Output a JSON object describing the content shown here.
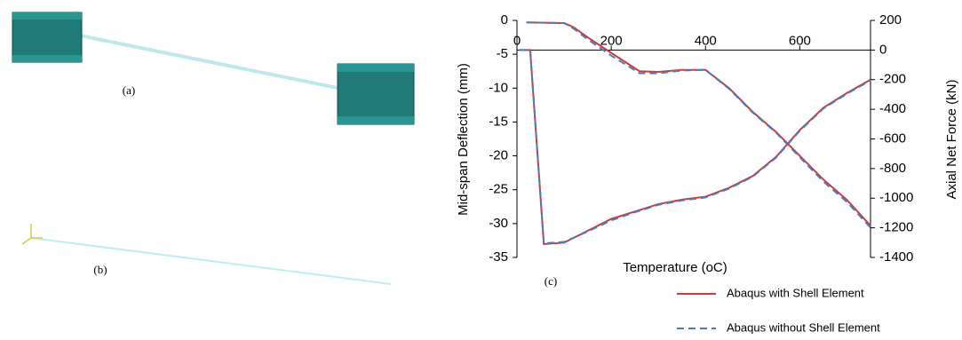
{
  "figure_labels": {
    "a": "(a)",
    "b": "(b)",
    "c": "(c)"
  },
  "chart_data": {
    "type": "line",
    "x_label": "Temperature (oC)",
    "y_label": "Mid-span Deflection (mm)",
    "y2_label": "Axial Net Force (kN)",
    "xlim": [
      0,
      750
    ],
    "xticks": [
      0,
      200,
      400,
      600
    ],
    "ylim": [
      -35,
      0
    ],
    "yticks": [
      0,
      -5,
      -10,
      -15,
      -20,
      -25,
      -30,
      -35
    ],
    "y2lim": [
      -1400,
      200
    ],
    "y2ticks": [
      200,
      0,
      -200,
      -400,
      -600,
      -800,
      -1000,
      -1200,
      -1400
    ],
    "series": [
      {
        "name": "Abaqus with Shell Element",
        "color": "#d03a3a",
        "dash": false,
        "x": [
          20,
          100,
          120,
          150,
          200,
          260,
          300,
          350,
          400,
          450,
          500,
          550,
          600,
          650,
          700,
          750
        ],
        "values": [
          -0.3,
          -0.4,
          -1,
          -2.5,
          -4.8,
          -7.5,
          -7.6,
          -7.3,
          -7.3,
          -10,
          -13.5,
          -16.5,
          -20,
          -23.5,
          -26.5,
          -30.3
        ]
      },
      {
        "name": "Abaqus without Shell Element",
        "color": "#4a7ebb",
        "dash": true,
        "x": [
          20,
          100,
          120,
          150,
          200,
          260,
          300,
          350,
          400,
          450,
          500,
          550,
          600,
          650,
          700,
          750
        ],
        "values": [
          -0.3,
          -0.4,
          -1.2,
          -2.8,
          -5.2,
          -7.8,
          -7.8,
          -7.4,
          -7.3,
          -10.1,
          -13.6,
          -16.6,
          -20.2,
          -23.8,
          -26.8,
          -30.6
        ]
      },
      {
        "name": "Abaqus with Shell Element",
        "color": "#d03a3a",
        "dash": false,
        "axis": "y2",
        "x": [
          5,
          28,
          57,
          100,
          150,
          200,
          250,
          300,
          350,
          400,
          450,
          500,
          550,
          600,
          650,
          700,
          750
        ],
        "values": [
          0,
          0,
          -1310,
          -1300,
          -1220,
          -1140,
          -1090,
          -1040,
          -1010,
          -990,
          -930,
          -850,
          -720,
          -540,
          -390,
          -290,
          -200
        ]
      },
      {
        "name": "Abaqus without Shell Element",
        "color": "#4a7ebb",
        "dash": true,
        "axis": "y2",
        "x": [
          5,
          28,
          57,
          100,
          150,
          200,
          250,
          300,
          350,
          400,
          450,
          500,
          550,
          600,
          650,
          700,
          750
        ],
        "values": [
          0,
          0,
          -1305,
          -1295,
          -1225,
          -1150,
          -1095,
          -1045,
          -1015,
          -995,
          -935,
          -855,
          -725,
          -545,
          -395,
          -295,
          -205
        ]
      }
    ]
  }
}
